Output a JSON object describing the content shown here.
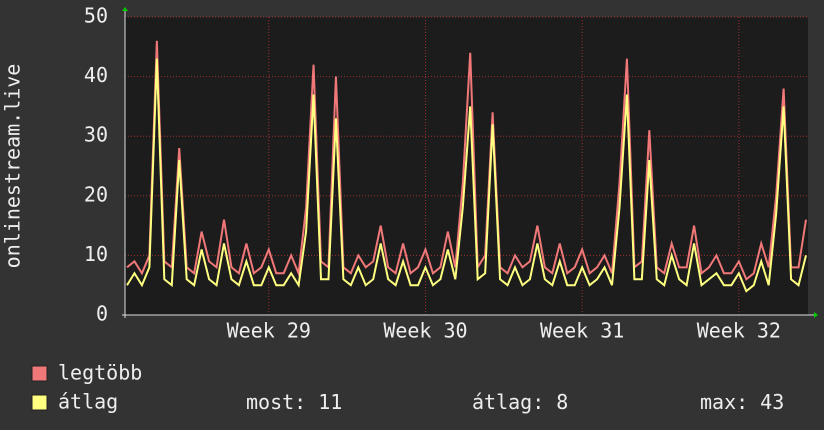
{
  "chart_data": {
    "type": "line",
    "y_label": "onlinestream.live",
    "categories": [
      null,
      null,
      null,
      null,
      null,
      null,
      null,
      null,
      null,
      null,
      null,
      null,
      null,
      null,
      null,
      null,
      null,
      null,
      null,
      "Week 29",
      null,
      null,
      null,
      null,
      null,
      null,
      null,
      null,
      null,
      null,
      null,
      null,
      null,
      null,
      null,
      null,
      null,
      null,
      null,
      null,
      "Week 30",
      null,
      null,
      null,
      null,
      null,
      null,
      null,
      null,
      null,
      null,
      null,
      null,
      null,
      null,
      null,
      null,
      null,
      null,
      null,
      null,
      "Week 31",
      null,
      null,
      null,
      null,
      null,
      null,
      null,
      null,
      null,
      null,
      null,
      null,
      null,
      null,
      null,
      null,
      null,
      null,
      null,
      null,
      "Week 32",
      null,
      null,
      null,
      null,
      null,
      null,
      null,
      null,
      null
    ],
    "series": [
      {
        "name": "legtöbb",
        "color": "#f07878",
        "values": [
          8,
          9,
          7,
          10,
          46,
          9,
          8,
          28,
          8,
          7,
          14,
          9,
          8,
          16,
          8,
          7,
          12,
          7,
          8,
          11,
          7,
          7,
          10,
          7,
          18,
          42,
          9,
          8,
          40,
          8,
          7,
          10,
          8,
          9,
          15,
          8,
          7,
          12,
          7,
          8,
          11,
          7,
          8,
          14,
          8,
          22,
          44,
          8,
          10,
          34,
          8,
          7,
          10,
          8,
          9,
          15,
          8,
          7,
          12,
          7,
          8,
          11,
          7,
          8,
          10,
          7,
          22,
          43,
          8,
          9,
          31,
          8,
          7,
          12,
          8,
          8,
          15,
          7,
          8,
          10,
          7,
          7,
          9,
          6,
          7,
          12,
          8,
          20,
          38,
          8,
          8,
          16
        ]
      },
      {
        "name": "átlag",
        "color": "#ffff80",
        "values": [
          5,
          7,
          5,
          8,
          43,
          6,
          5,
          26,
          6,
          5,
          11,
          6,
          5,
          12,
          6,
          5,
          9,
          5,
          5,
          8,
          5,
          5,
          7,
          5,
          14,
          37,
          6,
          6,
          33,
          6,
          5,
          8,
          5,
          6,
          12,
          6,
          5,
          9,
          5,
          5,
          8,
          5,
          6,
          11,
          6,
          18,
          35,
          6,
          7,
          32,
          6,
          5,
          8,
          5,
          6,
          12,
          6,
          5,
          9,
          5,
          5,
          8,
          5,
          6,
          8,
          5,
          18,
          37,
          6,
          6,
          26,
          6,
          5,
          10,
          6,
          5,
          12,
          5,
          6,
          7,
          5,
          5,
          7,
          4,
          5,
          9,
          5,
          17,
          35,
          6,
          5,
          10
        ]
      }
    ],
    "ylim": [
      0,
      50
    ],
    "yticks": [
      0,
      10,
      20,
      30,
      40,
      50
    ],
    "grid": true,
    "stats": [
      {
        "label": "most:",
        "value": 11
      },
      {
        "label": "átlag:",
        "value": 8
      },
      {
        "label": "max:",
        "value": 43
      }
    ]
  }
}
